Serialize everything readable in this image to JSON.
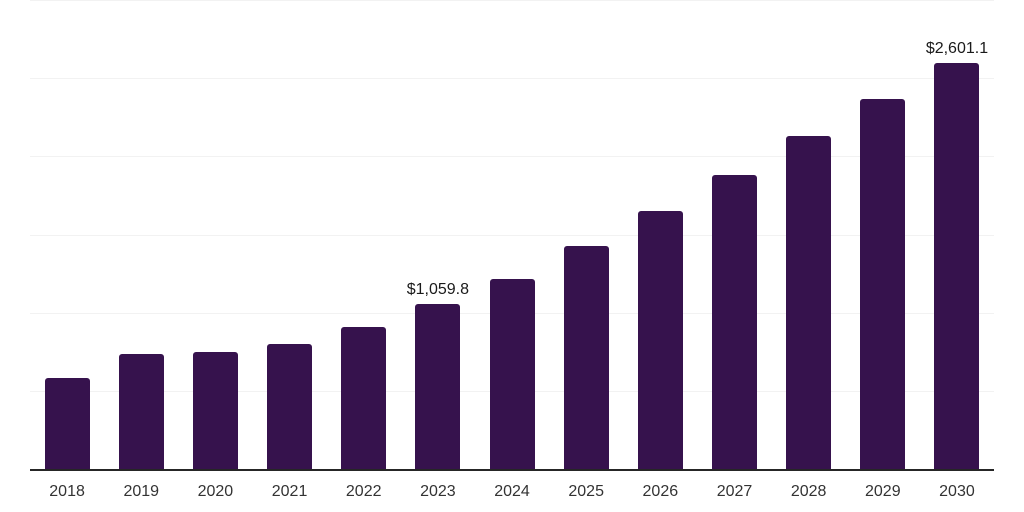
{
  "chart_data": {
    "type": "bar",
    "title": "",
    "xlabel": "",
    "ylabel": "",
    "categories": [
      "2018",
      "2019",
      "2020",
      "2021",
      "2022",
      "2023",
      "2024",
      "2025",
      "2026",
      "2027",
      "2028",
      "2029",
      "2030"
    ],
    "values": [
      590,
      744,
      752,
      808,
      917,
      1059.8,
      1224,
      1435,
      1660,
      1890,
      2135,
      2372,
      2601.1
    ],
    "data_labels": {
      "2023": "$1,059.8",
      "2030": "$2,601.1"
    },
    "ylim": [
      0,
      3000
    ],
    "gridline_step": 500,
    "grid": "horizontal-only",
    "legend": "none",
    "colors": {
      "bar_fill": "#36124D",
      "axis_line": "#262626",
      "gridline": "#f2f2f2",
      "tick_label": "#333333",
      "data_label": "#1a1a1a",
      "background": "#ffffff"
    }
  }
}
